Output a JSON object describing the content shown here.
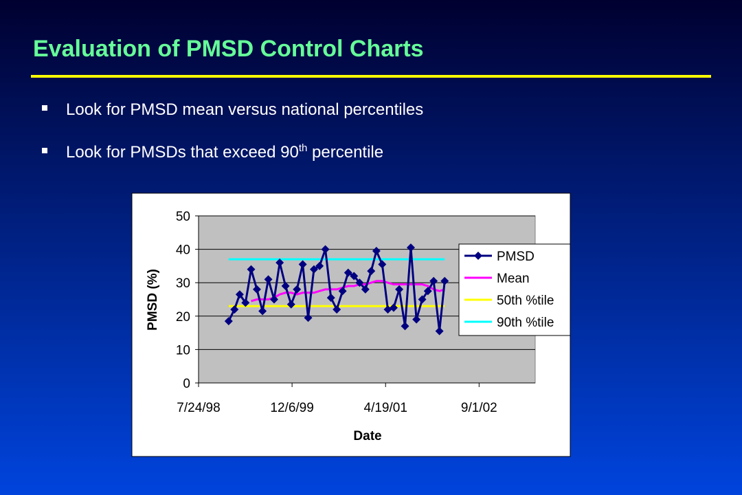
{
  "slide": {
    "title": "Evaluation of PMSD Control Charts",
    "bullets": [
      {
        "text": "Look for PMSD mean versus national percentiles"
      },
      {
        "text": "Look for PMSDs that exceed 90",
        "superscript": "th",
        "rest": "percentile"
      }
    ]
  },
  "chart_data": {
    "type": "line",
    "x_label": "Date",
    "y_label": "PMSD (%)",
    "x": [
      36161,
      36192,
      36220,
      36251,
      36281,
      36312,
      36342,
      36373,
      36404,
      36434,
      36465,
      36495,
      36526,
      36557,
      36586,
      36617,
      36647,
      36678,
      36708,
      36739,
      36770,
      36800,
      36831,
      36861,
      36892,
      36923,
      36951,
      36982,
      37012,
      37043,
      37073,
      37104,
      37135,
      37165,
      37196,
      37226,
      37257,
      37288,
      37316
    ],
    "xlim": [
      36000,
      37800
    ],
    "xticks": [
      {
        "value": 36000,
        "label": "7/24/98"
      },
      {
        "value": 36500,
        "label": "12/6/99"
      },
      {
        "value": 37000,
        "label": "4/19/01"
      },
      {
        "value": 37500,
        "label": "9/1/02"
      }
    ],
    "ylim": [
      0,
      50
    ],
    "yticks": [
      0,
      10,
      20,
      30,
      40,
      50
    ],
    "grid": true,
    "legend": "right",
    "series": [
      {
        "name": "PMSD",
        "color": "#000080",
        "marker": true,
        "values": [
          18.5,
          22,
          26.5,
          24,
          34,
          28,
          21.5,
          31,
          25,
          36,
          29,
          23.5,
          28,
          35.5,
          19.5,
          34,
          35,
          40,
          25.5,
          22,
          27.5,
          33,
          32,
          30,
          28,
          33.5,
          39.5,
          35.5,
          22,
          22.5,
          28,
          17,
          40.5,
          19,
          25,
          27.5,
          30.5,
          15.5,
          30.5
        ]
      },
      {
        "name": "Mean",
        "color": "#ff00ff",
        "marker": false,
        "values": [
          null,
          null,
          null,
          null,
          24.5,
          25,
          25,
          25,
          25.5,
          26.5,
          27,
          27,
          26.5,
          27,
          27,
          27,
          27.5,
          28,
          28,
          28,
          28.5,
          29,
          29,
          29.5,
          29.5,
          30,
          30.5,
          30.5,
          30,
          29.5,
          29.5,
          29.5,
          29.5,
          29.5,
          29.5,
          29,
          28,
          27.5,
          28
        ]
      },
      {
        "name": "50th %tile",
        "color": "#ffff00",
        "marker": false,
        "values": [
          23,
          23,
          23,
          23,
          23,
          23,
          23,
          23,
          23,
          23,
          23,
          23,
          23,
          23,
          23,
          23,
          23,
          23,
          23,
          23,
          23,
          23,
          23,
          23,
          23,
          23,
          23,
          23,
          23,
          23,
          23,
          23,
          23,
          23,
          23,
          23,
          23,
          23,
          23
        ]
      },
      {
        "name": "90th %tile",
        "color": "#00ffff",
        "marker": false,
        "values": [
          37,
          37,
          37,
          37,
          37,
          37,
          37,
          37,
          37,
          37,
          37,
          37,
          37,
          37,
          37,
          37,
          37,
          37,
          37,
          37,
          37,
          37,
          37,
          37,
          37,
          37,
          37,
          37,
          37,
          37,
          37,
          37,
          37,
          37,
          37,
          37,
          37,
          37,
          37
        ]
      }
    ]
  }
}
